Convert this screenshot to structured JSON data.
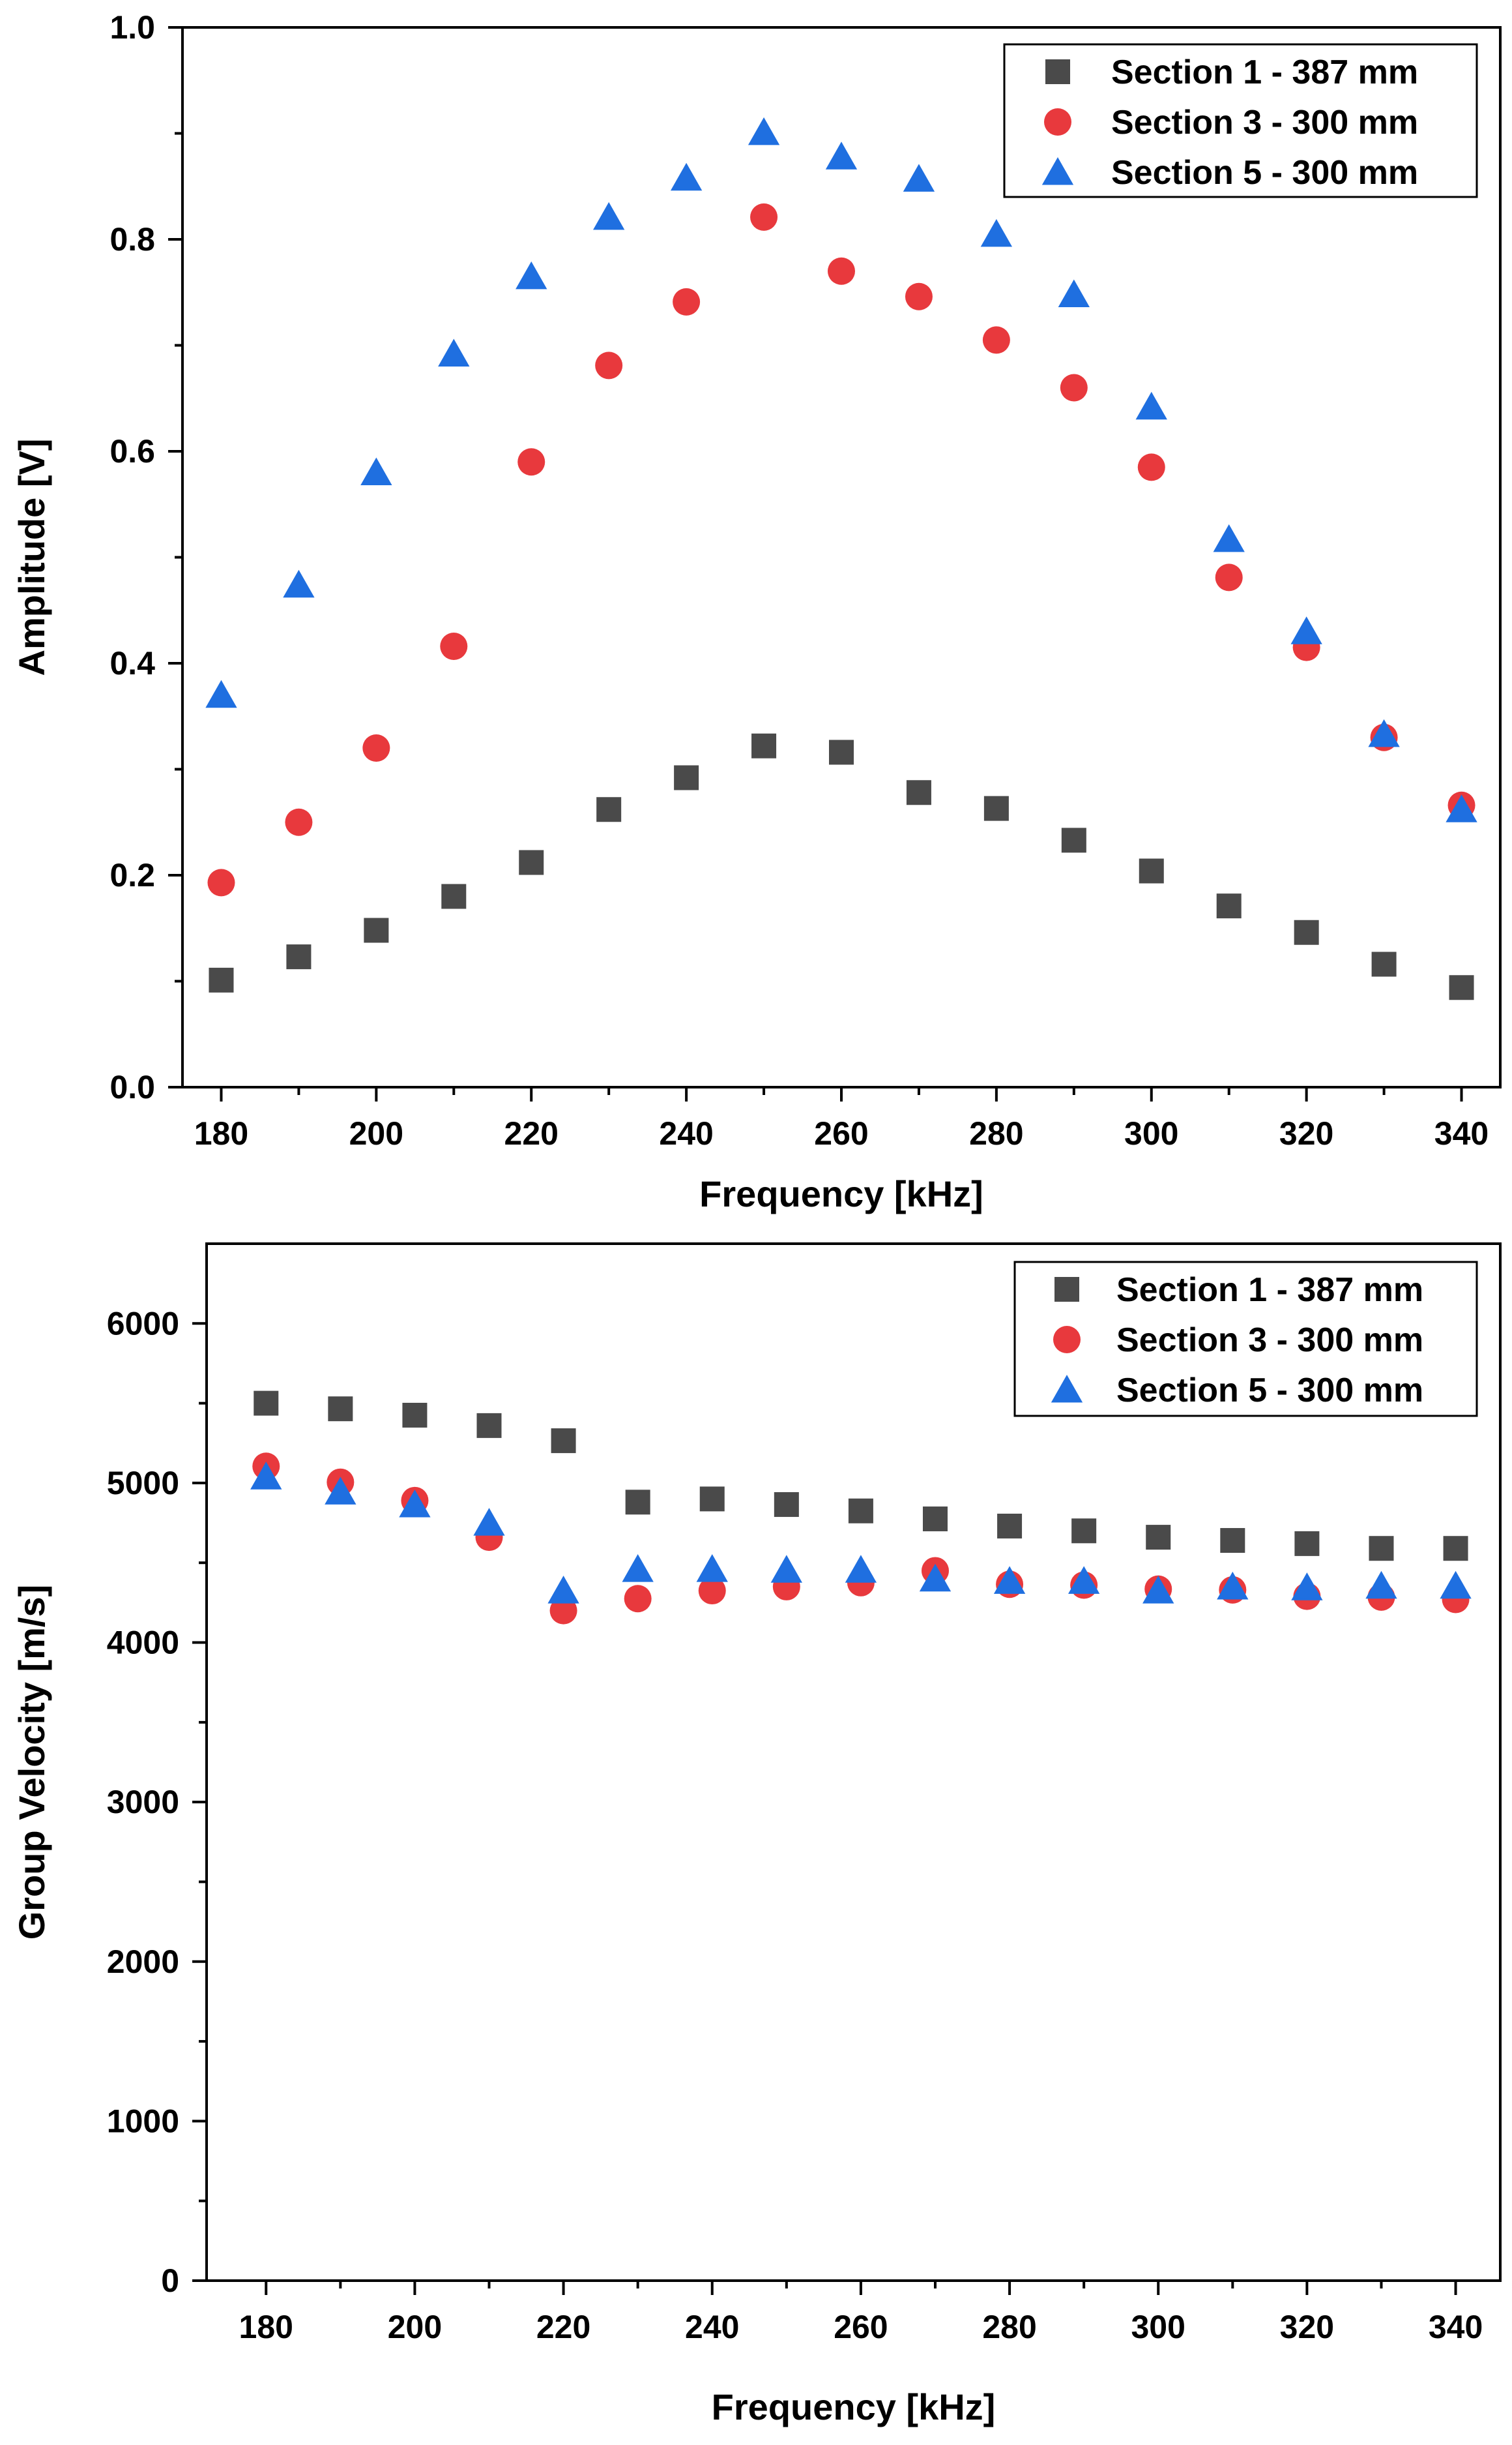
{
  "chart_data": [
    {
      "type": "scatter",
      "title": "",
      "xlabel": "Frequency [kHz]",
      "ylabel": "Amplitude [V]",
      "xlim": [
        175,
        345
      ],
      "ylim": [
        0,
        1
      ],
      "x_ticks": [
        180,
        200,
        220,
        240,
        260,
        280,
        300,
        320,
        340
      ],
      "x_tick_labels": [
        "180",
        "200",
        "220",
        "240",
        "260",
        "280",
        "300",
        "320",
        "340"
      ],
      "y_ticks": [
        0,
        0.2,
        0.4,
        0.6,
        0.8,
        1.0
      ],
      "y_tick_labels": [
        "0.0",
        "0.2",
        "0.4",
        "0.6",
        "0.8",
        "1.0"
      ],
      "grid": false,
      "legend_position": "top-right",
      "x": [
        180,
        190,
        200,
        210,
        220,
        230,
        240,
        250,
        260,
        270,
        280,
        290,
        300,
        310,
        320,
        330,
        340
      ],
      "series": [
        {
          "name": "Section 1 - 387 mm",
          "marker": "square",
          "color": "#4a4a4a",
          "values": [
            0.101,
            0.123,
            0.148,
            0.18,
            0.212,
            0.262,
            0.292,
            0.322,
            0.316,
            0.278,
            0.263,
            0.233,
            0.204,
            0.171,
            0.146,
            0.116,
            0.094
          ]
        },
        {
          "name": "Section 3 - 300 mm",
          "marker": "circle",
          "color": "#e8393d",
          "values": [
            0.193,
            0.25,
            0.32,
            0.416,
            0.59,
            0.681,
            0.741,
            0.821,
            0.77,
            0.746,
            0.705,
            0.66,
            0.585,
            0.481,
            0.415,
            0.33,
            0.266
          ]
        },
        {
          "name": "Section 5 - 300 mm",
          "marker": "triangle",
          "color": "#1f6fe0",
          "values": [
            0.37,
            0.474,
            0.58,
            0.692,
            0.765,
            0.821,
            0.858,
            0.901,
            0.878,
            0.857,
            0.805,
            0.748,
            0.642,
            0.517,
            0.43,
            0.333,
            0.262
          ]
        }
      ]
    },
    {
      "type": "scatter",
      "title": "",
      "xlabel": "Frequency [kHz]",
      "ylabel": "Group Velocity [m/s]",
      "xlim": [
        172,
        346
      ],
      "ylim": [
        0,
        6500
      ],
      "x_ticks": [
        180,
        200,
        220,
        240,
        260,
        280,
        300,
        320,
        340
      ],
      "x_tick_labels": [
        "180",
        "200",
        "220",
        "240",
        "260",
        "280",
        "300",
        "320",
        "340"
      ],
      "y_ticks": [
        0,
        1000,
        2000,
        3000,
        4000,
        5000,
        6000
      ],
      "y_tick_labels": [
        "0",
        "1000",
        "2000",
        "3000",
        "4000",
        "5000",
        "6000"
      ],
      "grid": false,
      "legend_position": "top-right",
      "x": [
        180,
        190,
        200,
        210,
        220,
        230,
        240,
        250,
        260,
        270,
        280,
        290,
        300,
        310,
        320,
        330,
        340
      ],
      "series": [
        {
          "name": "Section 1 - 387 mm",
          "marker": "square",
          "color": "#4a4a4a",
          "values": [
            5500,
            5465,
            5425,
            5360,
            5265,
            4880,
            4900,
            4865,
            4825,
            4775,
            4730,
            4700,
            4660,
            4640,
            4620,
            4590,
            4590
          ]
        },
        {
          "name": "Section 3 - 300 mm",
          "marker": "circle",
          "color": "#e8393d",
          "values": [
            5105,
            5005,
            4890,
            4660,
            4200,
            4275,
            4325,
            4350,
            4375,
            4450,
            4365,
            4360,
            4335,
            4330,
            4290,
            4285,
            4270
          ]
        },
        {
          "name": "Section 5 - 300 mm",
          "marker": "triangle",
          "color": "#1f6fe0",
          "values": [
            5040,
            4945,
            4865,
            4750,
            4325,
            4460,
            4460,
            4455,
            4455,
            4400,
            4385,
            4385,
            4325,
            4350,
            4345,
            4355,
            4355
          ]
        }
      ]
    }
  ]
}
